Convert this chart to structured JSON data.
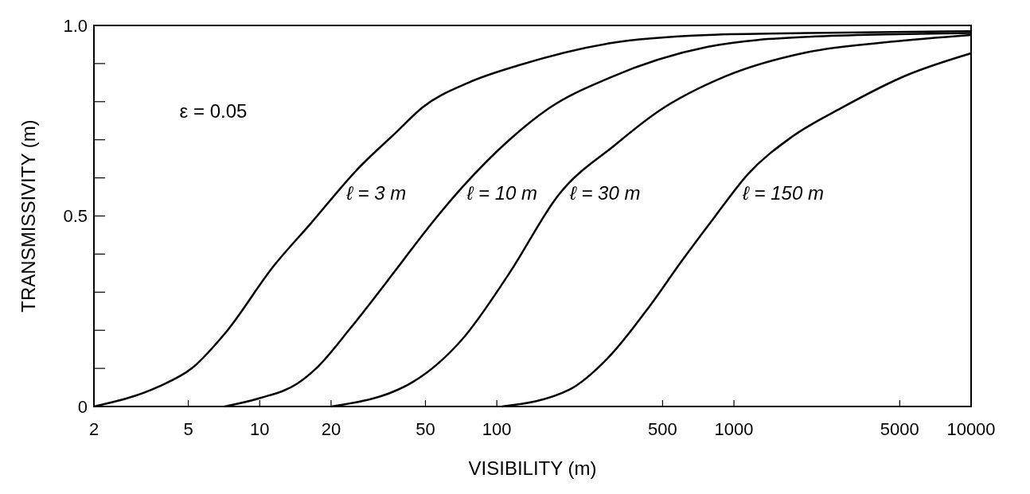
{
  "chart_data": {
    "type": "line",
    "xlabel": "VISIBILITY (m)",
    "ylabel": "TRANSMISSIVITY (m)",
    "log": "x",
    "xlim": [
      2,
      10000
    ],
    "xticks": [
      2,
      5,
      10,
      20,
      50,
      100,
      500,
      1000,
      5000,
      10000
    ],
    "ylim": [
      0,
      1
    ],
    "yticks": [
      0,
      {
        "value": 0.1,
        "label": null
      },
      {
        "value": 0.2,
        "label": null
      },
      {
        "value": 0.3,
        "label": null
      },
      {
        "value": 0.4,
        "label": null
      },
      0.5,
      {
        "value": 0.6,
        "label": null
      },
      {
        "value": 0.7,
        "label": null
      },
      {
        "value": 0.8,
        "label": null
      },
      {
        "value": 0.9,
        "label": null
      },
      {
        "value": 1,
        "label": "1.0"
      }
    ],
    "grid": false,
    "series": [
      {
        "name": "ℓ = 3 m",
        "color": "#000000",
        "x": [
          2,
          3.74,
          5.17,
          7.1,
          11.5,
          16.4,
          25.6,
          37.7,
          48.6,
          76,
          123,
          297,
          778,
          2050,
          10000
        ],
        "values": [
          0,
          0.052,
          0.1,
          0.19,
          0.37,
          0.48,
          0.62,
          0.72,
          0.785,
          0.85,
          0.895,
          0.953,
          0.975,
          0.98,
          0.985
        ]
      },
      {
        "name": "ℓ = 10 m",
        "color": "#000000",
        "x": [
          7.1,
          10,
          14.4,
          17.3,
          24.1,
          37.7,
          50,
          71.6,
          113,
          166,
          297,
          778,
          2050,
          10000
        ],
        "values": [
          0,
          0.022,
          0.06,
          0.1,
          0.205,
          0.36,
          0.46,
          0.576,
          0.7,
          0.783,
          0.862,
          0.944,
          0.97,
          0.98
        ]
      },
      {
        "name": "ℓ = 30 m",
        "color": "#000000",
        "x": [
          20,
          44.4,
          71.6,
          113,
          183,
          316,
          481,
          917,
          2050,
          4575,
          10000
        ],
        "values": [
          0,
          0.065,
          0.177,
          0.35,
          0.557,
          0.687,
          0.775,
          0.866,
          0.93,
          0.957,
          0.975
        ]
      },
      {
        "name": "ℓ = 150 m",
        "color": "#000000",
        "x": [
          105,
          202,
          297,
          437,
          604,
          828,
          1146,
          1740,
          2830,
          5380,
          10000
        ],
        "values": [
          0,
          0.044,
          0.13,
          0.26,
          0.383,
          0.497,
          0.61,
          0.706,
          0.783,
          0.87,
          0.927
        ]
      }
    ],
    "annotations": [
      "ε = 0.05"
    ]
  }
}
